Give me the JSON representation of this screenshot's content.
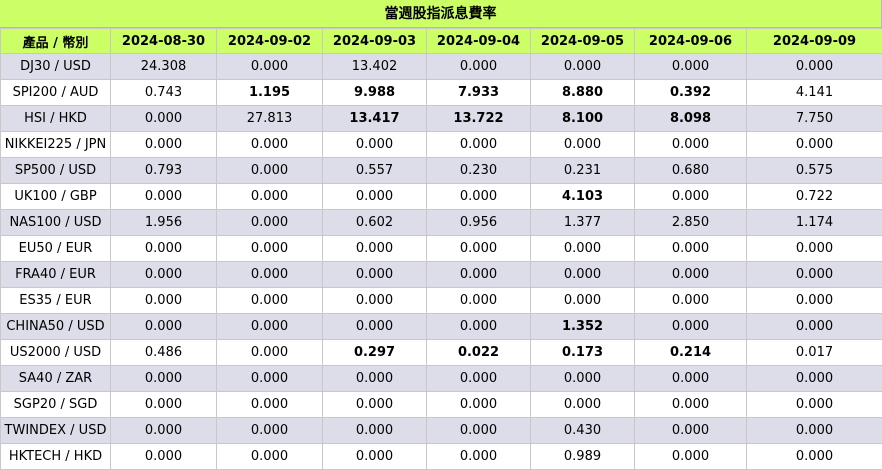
{
  "title": "當週股指派息費率",
  "header": {
    "product": "產品 / 幣別",
    "dates": [
      "2024-08-30",
      "2024-09-02",
      "2024-09-03",
      "2024-09-04",
      "2024-09-05",
      "2024-09-06",
      "2024-09-09"
    ]
  },
  "rows": [
    {
      "product": "DJ30 / USD",
      "values": [
        "24.308",
        "0.000",
        "13.402",
        "0.000",
        "0.000",
        "0.000",
        "0.000"
      ],
      "bold": [
        false,
        false,
        false,
        false,
        false,
        false,
        false
      ]
    },
    {
      "product": "SPI200 / AUD",
      "values": [
        "0.743",
        "1.195",
        "9.988",
        "7.933",
        "8.880",
        "0.392",
        "4.141"
      ],
      "bold": [
        false,
        true,
        true,
        true,
        true,
        true,
        false
      ]
    },
    {
      "product": "HSI / HKD",
      "values": [
        "0.000",
        "27.813",
        "13.417",
        "13.722",
        "8.100",
        "8.098",
        "7.750"
      ],
      "bold": [
        false,
        false,
        true,
        true,
        true,
        true,
        false
      ]
    },
    {
      "product": "NIKKEI225 / JPN",
      "values": [
        "0.000",
        "0.000",
        "0.000",
        "0.000",
        "0.000",
        "0.000",
        "0.000"
      ],
      "bold": [
        false,
        false,
        false,
        false,
        false,
        false,
        false
      ]
    },
    {
      "product": "SP500 / USD",
      "values": [
        "0.793",
        "0.000",
        "0.557",
        "0.230",
        "0.231",
        "0.680",
        "0.575"
      ],
      "bold": [
        false,
        false,
        false,
        false,
        false,
        false,
        false
      ]
    },
    {
      "product": "UK100 / GBP",
      "values": [
        "0.000",
        "0.000",
        "0.000",
        "0.000",
        "4.103",
        "0.000",
        "0.722"
      ],
      "bold": [
        false,
        false,
        false,
        false,
        true,
        false,
        false
      ]
    },
    {
      "product": "NAS100 / USD",
      "values": [
        "1.956",
        "0.000",
        "0.602",
        "0.956",
        "1.377",
        "2.850",
        "1.174"
      ],
      "bold": [
        false,
        false,
        false,
        false,
        false,
        false,
        false
      ]
    },
    {
      "product": "EU50 / EUR",
      "values": [
        "0.000",
        "0.000",
        "0.000",
        "0.000",
        "0.000",
        "0.000",
        "0.000"
      ],
      "bold": [
        false,
        false,
        false,
        false,
        false,
        false,
        false
      ]
    },
    {
      "product": "FRA40 / EUR",
      "values": [
        "0.000",
        "0.000",
        "0.000",
        "0.000",
        "0.000",
        "0.000",
        "0.000"
      ],
      "bold": [
        false,
        false,
        false,
        false,
        false,
        false,
        false
      ]
    },
    {
      "product": "ES35 / EUR",
      "values": [
        "0.000",
        "0.000",
        "0.000",
        "0.000",
        "0.000",
        "0.000",
        "0.000"
      ],
      "bold": [
        false,
        false,
        false,
        false,
        false,
        false,
        false
      ]
    },
    {
      "product": "CHINA50 / USD",
      "values": [
        "0.000",
        "0.000",
        "0.000",
        "0.000",
        "1.352",
        "0.000",
        "0.000"
      ],
      "bold": [
        false,
        false,
        false,
        false,
        true,
        false,
        false
      ]
    },
    {
      "product": "US2000 / USD",
      "values": [
        "0.486",
        "0.000",
        "0.297",
        "0.022",
        "0.173",
        "0.214",
        "0.017"
      ],
      "bold": [
        false,
        false,
        true,
        true,
        true,
        true,
        false
      ]
    },
    {
      "product": "SA40 / ZAR",
      "values": [
        "0.000",
        "0.000",
        "0.000",
        "0.000",
        "0.000",
        "0.000",
        "0.000"
      ],
      "bold": [
        false,
        false,
        false,
        false,
        false,
        false,
        false
      ]
    },
    {
      "product": "SGP20 / SGD",
      "values": [
        "0.000",
        "0.000",
        "0.000",
        "0.000",
        "0.000",
        "0.000",
        "0.000"
      ],
      "bold": [
        false,
        false,
        false,
        false,
        false,
        false,
        false
      ]
    },
    {
      "product": "TWINDEX / USD",
      "values": [
        "0.000",
        "0.000",
        "0.000",
        "0.000",
        "0.430",
        "0.000",
        "0.000"
      ],
      "bold": [
        false,
        false,
        false,
        false,
        false,
        false,
        false
      ]
    },
    {
      "product": "HKTECH / HKD",
      "values": [
        "0.000",
        "0.000",
        "0.000",
        "0.000",
        "0.989",
        "0.000",
        "0.000"
      ],
      "bold": [
        false,
        false,
        false,
        false,
        false,
        false,
        false
      ]
    }
  ],
  "colors": {
    "header_bg": "#ccff66",
    "odd_row_bg": "#dcdde8",
    "even_row_bg": "#ffffff",
    "grid": "#c8c8c8"
  }
}
